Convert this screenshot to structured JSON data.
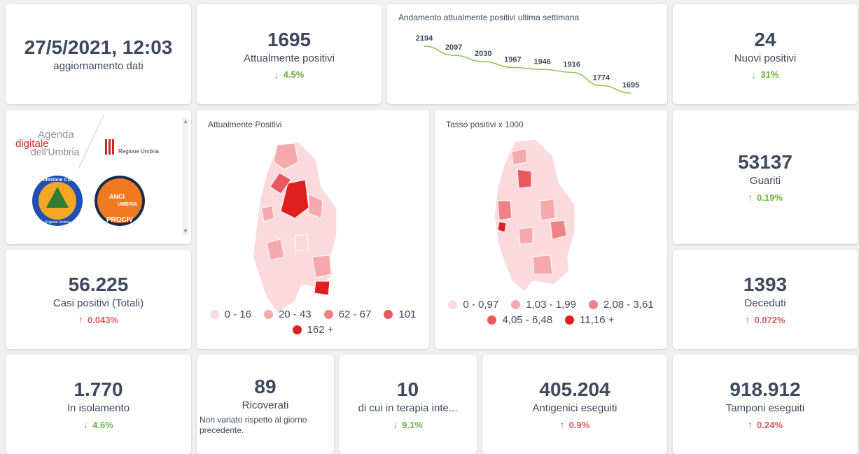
{
  "update": {
    "datetime": "27/5/2021, 12:03",
    "label": "aggiornamento dati"
  },
  "attualmente_positivi": {
    "value": "1695",
    "label": "Attualmente positivi",
    "delta": "4.5%",
    "direction": "down"
  },
  "trend": {
    "title": "Andamento attualmente positivi ultima settimana",
    "line_color": "#8bc34a",
    "points": [
      "2194",
      "2097",
      "2030",
      "1967",
      "1946",
      "1916",
      "1774",
      "1695"
    ]
  },
  "nuovi_positivi": {
    "value": "24",
    "label": "Nuovi positivi",
    "delta": "31%",
    "direction": "down"
  },
  "logos": {
    "agenda_line1": "Agenda",
    "agenda_line2": "digitale",
    "agenda_line3": "dell'Umbria",
    "regione": "Regione Umbria",
    "protezione": "Protezione Civile",
    "protezione_sub": "Regione Umbria",
    "anci1": "ANCI",
    "anci2": "UMBRIA",
    "anci3": "PROCIV"
  },
  "map1": {
    "title": "Attualmente Positivi",
    "legend": [
      {
        "label": "0 - 16",
        "color": "#fadadd"
      },
      {
        "label": "20 - 43",
        "color": "#f5a9ad"
      },
      {
        "label": "62 - 67",
        "color": "#ef8286"
      },
      {
        "label": "101",
        "color": "#e85a5f"
      },
      {
        "label": "162 +",
        "color": "#e02020"
      }
    ]
  },
  "map2": {
    "title": "Tasso positivi x 1000",
    "legend": [
      {
        "label": "0 - 0,97",
        "color": "#fadadd"
      },
      {
        "label": "1,03 - 1,99",
        "color": "#f5a9ad"
      },
      {
        "label": "2,08 - 3,61",
        "color": "#ef8286"
      },
      {
        "label": "4,05 - 6,48",
        "color": "#e85a5f"
      },
      {
        "label": "11,16 +",
        "color": "#e02020"
      }
    ]
  },
  "guariti": {
    "value": "53137",
    "label": "Guariti",
    "delta": "0.19%",
    "direction": "up_green"
  },
  "casi_totali": {
    "value": "56.225",
    "label": "Casi positivi (Totali)",
    "delta": "0.043%",
    "direction": "up"
  },
  "deceduti": {
    "value": "1393",
    "label": "Deceduti",
    "delta": "0.072%",
    "direction": "up"
  },
  "isolamento": {
    "value": "1.770",
    "label": "In isolamento",
    "delta": "4.6%",
    "direction": "down"
  },
  "ricoverati": {
    "value": "89",
    "label": "Ricoverati",
    "sub": "Non variato rispetto al giorno precedente."
  },
  "terapia": {
    "value": "10",
    "label": "di cui in terapia inte...",
    "delta": "9.1%",
    "direction": "down"
  },
  "antigenici": {
    "value": "405.204",
    "label": "Antigenici eseguiti",
    "delta": "0.9%",
    "direction": "up"
  },
  "tamponi": {
    "value": "918.912",
    "label": "Tamponi eseguiti",
    "delta": "0.24%",
    "direction": "up"
  },
  "icons": {
    "down": "arrow-down-icon",
    "up": "arrow-up-icon"
  },
  "colors": {
    "green": "#6cb33f",
    "red": "#e05a5a",
    "text": "#3d4a5c"
  }
}
